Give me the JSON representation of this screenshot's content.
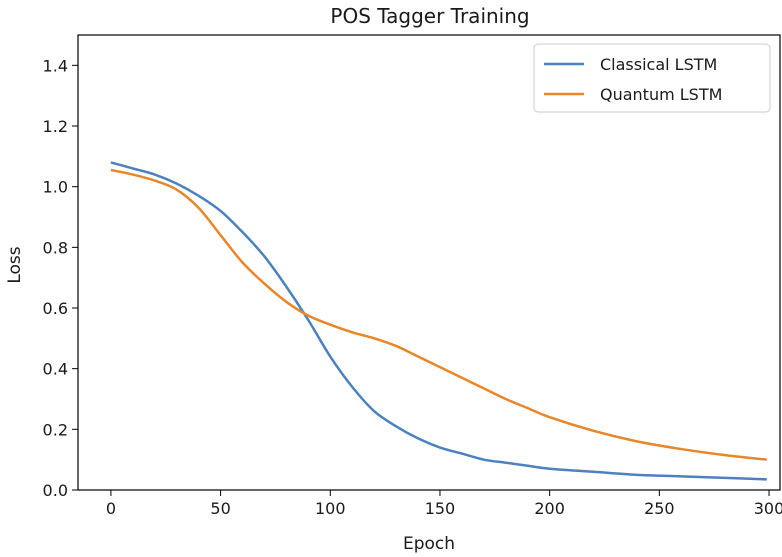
{
  "chart_data": {
    "type": "line",
    "title": "POS Tagger Training",
    "xlabel": "Epoch",
    "ylabel": "Loss",
    "xlim": [
      -15,
      305
    ],
    "ylim": [
      0.0,
      1.5
    ],
    "xticks": [
      0,
      50,
      100,
      150,
      200,
      250,
      300
    ],
    "yticks": [
      0.0,
      0.2,
      0.4,
      0.6,
      0.8,
      1.0,
      1.2,
      1.4
    ],
    "xtick_labels": [
      "0",
      "50",
      "100",
      "150",
      "200",
      "250",
      "300"
    ],
    "ytick_labels": [
      "0.0",
      "0.2",
      "0.4",
      "0.6",
      "0.8",
      "1.0",
      "1.2",
      "1.4"
    ],
    "grid": false,
    "legend_position": "top-right",
    "series": [
      {
        "name": "Classical LSTM",
        "color": "#4c81c0",
        "x": [
          0,
          10,
          20,
          30,
          40,
          50,
          60,
          70,
          80,
          90,
          100,
          110,
          120,
          130,
          140,
          150,
          160,
          170,
          180,
          190,
          200,
          220,
          240,
          260,
          280,
          299
        ],
        "y": [
          1.08,
          1.06,
          1.04,
          1.01,
          0.97,
          0.92,
          0.85,
          0.77,
          0.67,
          0.56,
          0.44,
          0.34,
          0.26,
          0.21,
          0.17,
          0.14,
          0.12,
          0.1,
          0.09,
          0.08,
          0.07,
          0.06,
          0.05,
          0.045,
          0.04,
          0.035
        ]
      },
      {
        "name": "Quantum LSTM",
        "color": "#e8862a",
        "x": [
          0,
          10,
          20,
          30,
          40,
          50,
          60,
          70,
          80,
          90,
          100,
          110,
          120,
          130,
          140,
          150,
          160,
          170,
          180,
          190,
          200,
          220,
          240,
          260,
          280,
          299
        ],
        "y": [
          1.055,
          1.04,
          1.02,
          0.99,
          0.93,
          0.84,
          0.75,
          0.68,
          0.62,
          0.575,
          0.545,
          0.52,
          0.5,
          0.475,
          0.44,
          0.405,
          0.37,
          0.335,
          0.3,
          0.27,
          0.24,
          0.195,
          0.16,
          0.135,
          0.115,
          0.1
        ]
      }
    ]
  }
}
